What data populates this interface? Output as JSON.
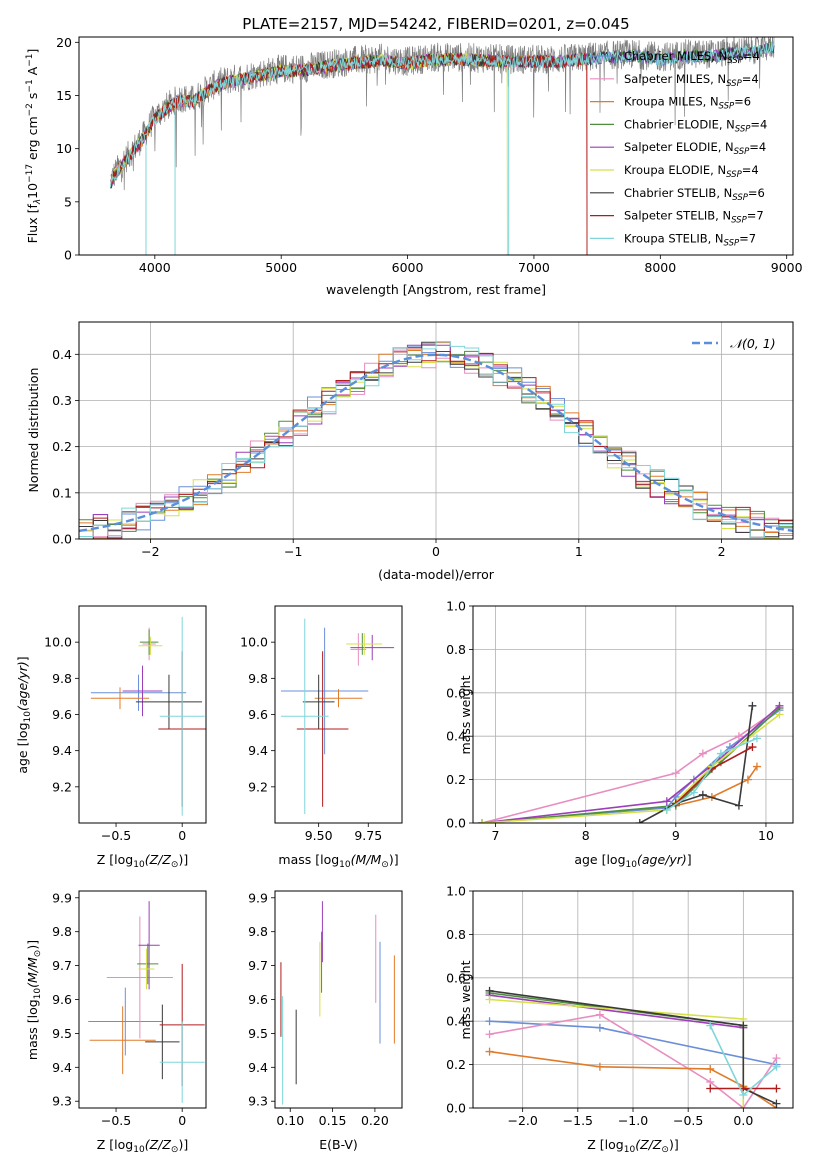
{
  "figure": {
    "title": "PLATE=2157, MJD=54242, FIBERID=0201, z=0.045"
  },
  "colors": {
    "data": "#7f7f7f",
    "normal": "#5a8fdc",
    "models": [
      "#6a8fd8",
      "#e88dc0",
      "#e07b2a",
      "#4e8f3e",
      "#9c3fb8",
      "#d6e14a",
      "#3a3a3a",
      "#b01c1c",
      "#7fd6da"
    ]
  },
  "chart_data": [
    {
      "type": "line",
      "name": "spectrum",
      "xlabel": "wavelength [Angstrom, rest frame]",
      "ylabel": "Flux [f$_\\lambda$10$^{-17}$ erg cm$^{-2}$ s$^{-1}$ A$^{-1}$]",
      "ylabel_parts": [
        "Flux [f",
        "λ",
        "10",
        "−17",
        " erg cm",
        "−2",
        " s",
        "−1",
        " A",
        "−1",
        "]"
      ],
      "xlim": [
        3400,
        9050
      ],
      "ylim": [
        0,
        20.5
      ],
      "xticks": [
        4000,
        5000,
        6000,
        7000,
        8000,
        9000
      ],
      "yticks": [
        0,
        5,
        10,
        15,
        20
      ],
      "legend_position": "upper-right",
      "legend": [
        {
          "label": "Chabrier MILES, N",
          "n": "4"
        },
        {
          "label": "Salpeter MILES, N",
          "n": "4"
        },
        {
          "label": "Kroupa MILES, N",
          "n": "6"
        },
        {
          "label": "Chabrier ELODIE, N",
          "n": "4"
        },
        {
          "label": "Salpeter ELODIE, N",
          "n": "4"
        },
        {
          "label": "Kroupa ELODIE, N",
          "n": "4"
        },
        {
          "label": "Chabrier STELIB, N",
          "n": "6"
        },
        {
          "label": "Salpeter STELIB, N",
          "n": "7"
        },
        {
          "label": "Kroupa STELIB, N",
          "n": "7"
        }
      ],
      "legend_sub": "SSP",
      "continuum": {
        "x": [
          3650,
          3700,
          3800,
          3900,
          4000,
          4100,
          4200,
          4300,
          4400,
          4500,
          4600,
          4800,
          5000,
          5200,
          5400,
          5600,
          5800,
          6000,
          6200,
          6400,
          6600,
          6800,
          7000,
          7200,
          7400,
          7600,
          7800,
          8000,
          8200,
          8400,
          8600,
          8800,
          8900
        ],
        "y": [
          7,
          8,
          9.5,
          11,
          13,
          14,
          14.8,
          14.6,
          15.5,
          16.2,
          16.5,
          17,
          17.5,
          17.6,
          18,
          18.3,
          18.5,
          18.2,
          18.6,
          18.6,
          18.5,
          18.4,
          18.4,
          18.4,
          18.6,
          18.8,
          18.9,
          18.6,
          18.9,
          18.9,
          19.2,
          19.4,
          19.8
        ]
      }
    },
    {
      "type": "histogram",
      "name": "residuals",
      "xlabel": "(data-model)/error",
      "ylabel": "Normed distribution",
      "xlim": [
        -2.5,
        2.5
      ],
      "ylim": [
        0,
        0.47
      ],
      "xticks": [
        -2,
        -1,
        0,
        1,
        2
      ],
      "yticks": [
        0.0,
        0.1,
        0.2,
        0.3,
        0.4
      ],
      "bin_width": 0.1,
      "grid": true,
      "normal_label": "𝒩(0, 1)",
      "legend_position": "upper-right"
    },
    {
      "type": "scatter",
      "name": "age-vs-Z",
      "xlabel": "Z [log",
      "xlabel_sub": "10",
      "xlabel_rest": "(Z/Z",
      "xlabel_sym": "⊙",
      "xlabel_end": ")]",
      "ylabel": "age  [log10(age/yr)]",
      "xlim": [
        -0.78,
        0.18
      ],
      "ylim": [
        9.0,
        10.2
      ],
      "xticks": [
        -0.5,
        0.0
      ],
      "yticks": [
        9.2,
        9.4,
        9.6,
        9.8,
        10.0
      ],
      "points": [
        {
          "x": -0.33,
          "y": 9.72,
          "xerr": 0.36,
          "yerr": 0.1
        },
        {
          "x": -0.25,
          "y": 9.99,
          "xerr": 0.05,
          "yerr": 0.09
        },
        {
          "x": -0.47,
          "y": 9.69,
          "xerr": 0.22,
          "yerr": 0.06
        },
        {
          "x": -0.25,
          "y": 10.0,
          "xerr": 0.07,
          "yerr": 0.07
        },
        {
          "x": -0.3,
          "y": 9.73,
          "xerr": 0.15,
          "yerr": 0.14
        },
        {
          "x": -0.24,
          "y": 9.98,
          "xerr": 0.09,
          "yerr": 0.05
        },
        {
          "x": -0.1,
          "y": 9.67,
          "xerr": 0.25,
          "yerr": 0.15
        },
        {
          "x": 0.0,
          "y": 9.52,
          "xerr": 0.18,
          "yerr": 0.43
        },
        {
          "x": 0.0,
          "y": 9.59,
          "xerr": 0.17,
          "yerr": 0.55
        }
      ]
    },
    {
      "type": "scatter",
      "name": "age-vs-mass",
      "xlabel": "mass [log",
      "xlabel_sub": "10",
      "xlabel_rest": "(M/M",
      "xlabel_sym": "⊙",
      "xlabel_end": ")]",
      "ylabel": "",
      "xlim": [
        9.28,
        9.92
      ],
      "ylim": [
        9.0,
        10.2
      ],
      "xticks": [
        9.5,
        9.75
      ],
      "xticklabels": [
        "9.50",
        "9.75"
      ],
      "yticks": [
        9.2,
        9.4,
        9.6,
        9.8,
        10.0
      ],
      "points": [
        {
          "x": 9.53,
          "y": 9.73,
          "xerr": 0.22,
          "yerr": 0.35
        },
        {
          "x": 9.7,
          "y": 9.96,
          "xerr": 0.04,
          "yerr": 0.09
        },
        {
          "x": 9.6,
          "y": 9.69,
          "xerr": 0.12,
          "yerr": 0.05
        },
        {
          "x": 9.72,
          "y": 9.99,
          "xerr": 0.08,
          "yerr": 0.06
        },
        {
          "x": 9.77,
          "y": 9.97,
          "xerr": 0.11,
          "yerr": 0.07
        },
        {
          "x": 9.73,
          "y": 9.99,
          "xerr": 0.09,
          "yerr": 0.06
        },
        {
          "x": 9.5,
          "y": 9.67,
          "xerr": 0.08,
          "yerr": 0.15
        },
        {
          "x": 9.52,
          "y": 9.52,
          "xerr": 0.13,
          "yerr": 0.43
        },
        {
          "x": 9.43,
          "y": 9.59,
          "xerr": 0.12,
          "yerr": 0.54
        }
      ]
    },
    {
      "type": "line",
      "name": "mass-weight-vs-age",
      "xlabel": "age  [log10(age/yr)]",
      "ylabel": "mass weight",
      "xlim": [
        6.75,
        10.3
      ],
      "ylim": [
        0,
        1.0
      ],
      "xticks": [
        7,
        8,
        9,
        10
      ],
      "yticks": [
        0.0,
        0.2,
        0.4,
        0.6,
        0.8,
        1.0
      ],
      "grid": true,
      "series": [
        {
          "x": [
            6.85,
            8.9,
            9.0,
            9.2,
            9.6,
            10.15
          ],
          "y": [
            0.0,
            0.07,
            0.12,
            0.2,
            0.35,
            0.52
          ]
        },
        {
          "x": [
            6.85,
            9.0,
            9.3,
            9.7,
            10.15
          ],
          "y": [
            0.0,
            0.23,
            0.32,
            0.4,
            0.53
          ]
        },
        {
          "x": [
            9.0,
            9.4,
            9.8,
            9.9
          ],
          "y": [
            0.08,
            0.12,
            0.2,
            0.26
          ]
        },
        {
          "x": [
            6.85,
            9.0,
            9.5,
            10.15
          ],
          "y": [
            0.0,
            0.08,
            0.28,
            0.53
          ]
        },
        {
          "x": [
            6.85,
            8.9,
            9.5,
            10.15
          ],
          "y": [
            0.0,
            0.1,
            0.3,
            0.54
          ]
        },
        {
          "x": [
            6.85,
            8.9,
            9.4,
            10.15
          ],
          "y": [
            0.0,
            0.06,
            0.26,
            0.5
          ]
        },
        {
          "x": [
            8.6,
            9.0,
            9.3,
            9.7,
            9.85
          ],
          "y": [
            0.0,
            0.09,
            0.13,
            0.08,
            0.54
          ]
        },
        {
          "x": [
            9.0,
            9.4,
            9.85
          ],
          "y": [
            0.09,
            0.25,
            0.35
          ]
        },
        {
          "x": [
            8.9,
            9.2,
            9.5,
            9.9
          ],
          "y": [
            0.06,
            0.14,
            0.32,
            0.39
          ]
        }
      ]
    },
    {
      "type": "scatter",
      "name": "mass-vs-Z",
      "xlabel": "Z [log",
      "xlabel_sub": "10",
      "xlabel_rest": "(Z/Z",
      "xlabel_sym": "⊙",
      "xlabel_end": ")]",
      "ylabel": "mass [log10(M/M⊙)]",
      "xlim": [
        -0.78,
        0.18
      ],
      "ylim": [
        9.28,
        9.92
      ],
      "xticks": [
        -0.5,
        0.0
      ],
      "yticks": [
        9.3,
        9.4,
        9.5,
        9.6,
        9.7,
        9.8,
        9.9
      ],
      "points": [
        {
          "x": -0.43,
          "y": 9.535,
          "xerr": 0.28,
          "yerr": 0.1
        },
        {
          "x": -0.32,
          "y": 9.665,
          "xerr": 0.25,
          "yerr": 0.18
        },
        {
          "x": -0.45,
          "y": 9.48,
          "xerr": 0.25,
          "yerr": 0.1
        },
        {
          "x": -0.26,
          "y": 9.705,
          "xerr": 0.08,
          "yerr": 0.06
        },
        {
          "x": -0.25,
          "y": 9.76,
          "xerr": 0.08,
          "yerr": 0.13
        },
        {
          "x": -0.27,
          "y": 9.69,
          "xerr": 0.06,
          "yerr": 0.06
        },
        {
          "x": -0.15,
          "y": 9.475,
          "xerr": 0.13,
          "yerr": 0.11
        },
        {
          "x": 0.0,
          "y": 9.525,
          "xerr": 0.17,
          "yerr": 0.18
        },
        {
          "x": 0.0,
          "y": 9.415,
          "xerr": 0.17,
          "yerr": 0.12
        }
      ]
    },
    {
      "type": "scatter",
      "name": "mass-vs-EBV",
      "xlabel": "E(B-V)",
      "ylabel": "",
      "xlim": [
        0.082,
        0.232
      ],
      "ylim": [
        9.28,
        9.92
      ],
      "xticks": [
        0.1,
        0.15,
        0.2
      ],
      "xticklabels": [
        "0.10",
        "0.15",
        "0.20"
      ],
      "yticks": [
        9.3,
        9.4,
        9.5,
        9.6,
        9.7,
        9.8,
        9.9
      ],
      "points": [
        {
          "x": 0.206,
          "y": 9.62,
          "yerr": 0.15
        },
        {
          "x": 0.201,
          "y": 9.72,
          "yerr": 0.13
        },
        {
          "x": 0.223,
          "y": 9.6,
          "yerr": 0.13
        },
        {
          "x": 0.137,
          "y": 9.71,
          "yerr": 0.09
        },
        {
          "x": 0.138,
          "y": 9.8,
          "yerr": 0.09
        },
        {
          "x": 0.135,
          "y": 9.66,
          "yerr": 0.11
        },
        {
          "x": 0.107,
          "y": 9.46,
          "yerr": 0.11
        },
        {
          "x": 0.089,
          "y": 9.6,
          "yerr": 0.11
        },
        {
          "x": 0.091,
          "y": 9.45,
          "yerr": 0.16
        }
      ]
    },
    {
      "type": "line",
      "name": "mass-weight-vs-Z",
      "xlabel": "Z [log",
      "xlabel_sub": "10",
      "xlabel_rest": "(Z/Z",
      "xlabel_sym": "⊙",
      "xlabel_end": ")]",
      "ylabel": "mass weight",
      "xlim": [
        -2.45,
        0.45
      ],
      "ylim": [
        0,
        1.0
      ],
      "xticks": [
        -2.0,
        -1.5,
        -1.0,
        -0.5,
        0.0
      ],
      "xticklabels": [
        "−2.0",
        "−1.5",
        "−1.0",
        "−0.5",
        "0.0"
      ],
      "yticks": [
        0.0,
        0.2,
        0.4,
        0.6,
        0.8,
        1.0
      ],
      "grid": true,
      "series": [
        {
          "x": [
            -2.3,
            -1.3,
            0.3
          ],
          "y": [
            0.4,
            0.37,
            0.2
          ]
        },
        {
          "x": [
            -2.3,
            -1.3,
            -0.3,
            0.0,
            0.3
          ],
          "y": [
            0.34,
            0.43,
            0.12,
            0.0,
            0.23
          ]
        },
        {
          "x": [
            -2.3,
            -1.3,
            -0.3,
            0.0,
            0.3
          ],
          "y": [
            0.26,
            0.19,
            0.18,
            0.1,
            0.0
          ]
        },
        {
          "x": [
            -2.3,
            0.0
          ],
          "y": [
            0.53,
            0.38
          ]
        },
        {
          "x": [
            -2.3,
            0.0
          ],
          "y": [
            0.52,
            0.37
          ]
        },
        {
          "x": [
            -2.3,
            0.0,
            0.0
          ],
          "y": [
            0.5,
            0.41,
            0.0
          ]
        },
        {
          "x": [
            -2.3,
            0.0,
            0.0,
            0.3
          ],
          "y": [
            0.54,
            0.38,
            0.09,
            0.02
          ]
        },
        {
          "x": [
            -0.3,
            0.0,
            0.3
          ],
          "y": [
            0.09,
            0.09,
            0.09
          ]
        },
        {
          "x": [
            -0.3,
            0.0,
            0.3
          ],
          "y": [
            0.38,
            0.06,
            0.19
          ]
        }
      ]
    }
  ]
}
